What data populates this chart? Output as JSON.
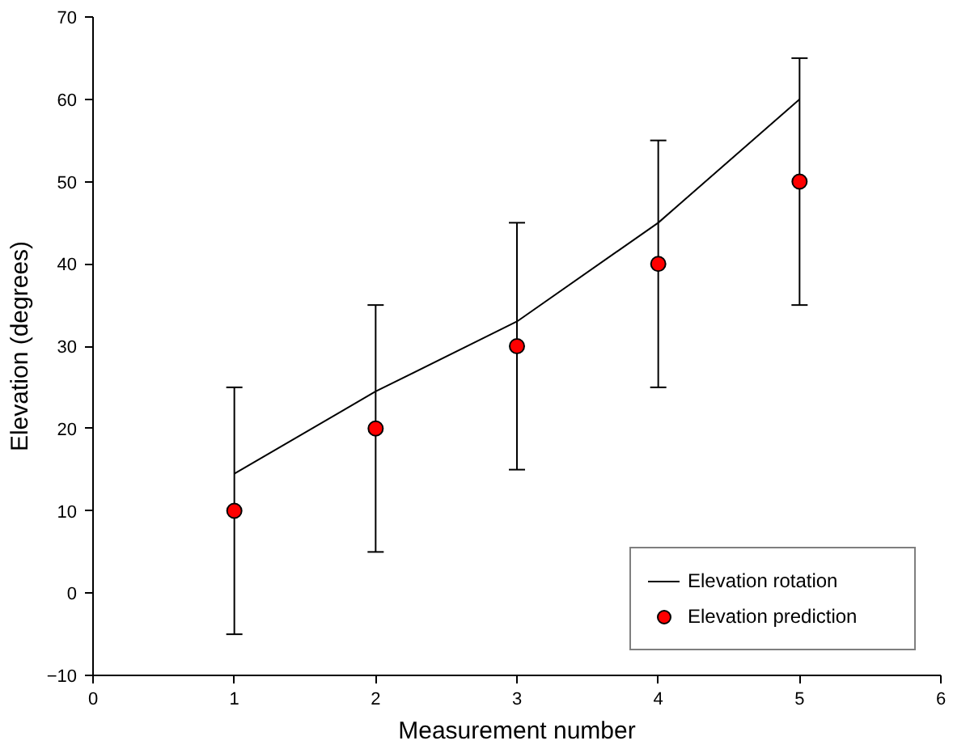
{
  "chart_data": {
    "type": "line",
    "xlabel": "Measurement number",
    "ylabel": "Elevation (degrees)",
    "xlim": [
      0,
      6
    ],
    "xticks": [
      0,
      1,
      2,
      3,
      4,
      5,
      6
    ],
    "ylim": [
      -10,
      70
    ],
    "yticks": [
      -10,
      0,
      10,
      20,
      30,
      40,
      50,
      60,
      70
    ],
    "grid": false,
    "legend": "bottom right",
    "series": [
      {
        "name": "Elevation rotation",
        "color": "#000000",
        "marker": "none",
        "line_style": "solid",
        "x": [
          1,
          2,
          3,
          4,
          5
        ],
        "values": [
          14.5,
          24.5,
          33,
          45,
          60
        ]
      },
      {
        "name": "Elevation prediction",
        "type": "scatter",
        "color": "#ff0000",
        "marker": "circle",
        "x": [
          1,
          2,
          3,
          4,
          5
        ],
        "values": [
          10,
          20,
          30,
          40,
          50
        ],
        "errors": [
          15,
          15,
          15,
          15,
          15
        ]
      }
    ]
  }
}
